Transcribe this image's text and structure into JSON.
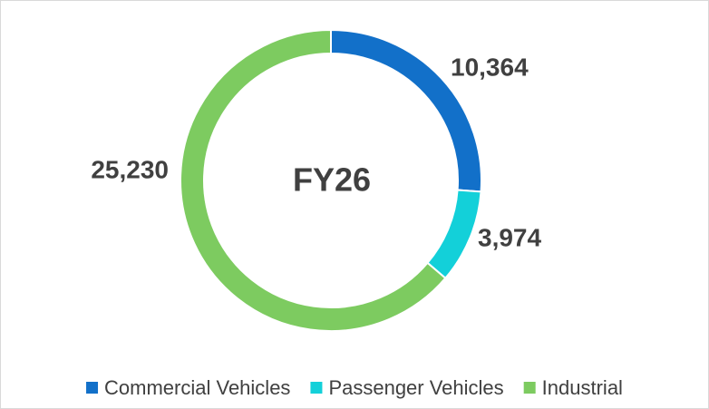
{
  "chart_data": {
    "type": "donut",
    "annotation": "FY26",
    "categories": [
      "Commercial Vehicles",
      "Passenger Vehicles",
      "Industrial"
    ],
    "values": [
      10364,
      3974,
      25230
    ],
    "value_labels": [
      "10,364",
      "3,974",
      "25,230"
    ],
    "colors": [
      "#1270c9",
      "#13d0d9",
      "#7dcb60"
    ],
    "legend": "bottom"
  }
}
